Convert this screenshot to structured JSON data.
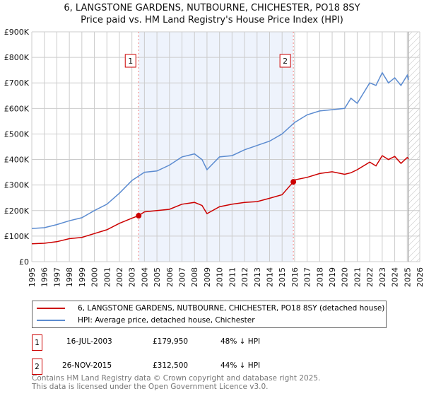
{
  "chart_data": {
    "type": "line",
    "title": "6, LANGSTONE GARDENS, NUTBOURNE, CHICHESTER, PO18 8SY",
    "subtitle": "Price paid vs. HM Land Registry's House Price Index (HPI)",
    "xlim": [
      1995,
      2026
    ],
    "ylim": [
      0,
      900000
    ],
    "y_ticks": [
      {
        "v": 0,
        "label": "£0"
      },
      {
        "v": 100000,
        "label": "£100K"
      },
      {
        "v": 200000,
        "label": "£200K"
      },
      {
        "v": 300000,
        "label": "£300K"
      },
      {
        "v": 400000,
        "label": "£400K"
      },
      {
        "v": 500000,
        "label": "£500K"
      },
      {
        "v": 600000,
        "label": "£600K"
      },
      {
        "v": 700000,
        "label": "£700K"
      },
      {
        "v": 800000,
        "label": "£800K"
      },
      {
        "v": 900000,
        "label": "£900K"
      }
    ],
    "x_ticks": [
      "1995",
      "1996",
      "1997",
      "1998",
      "1999",
      "2000",
      "2001",
      "2002",
      "2003",
      "2004",
      "2005",
      "2006",
      "2007",
      "2008",
      "2009",
      "2010",
      "2011",
      "2012",
      "2013",
      "2014",
      "2015",
      "2016",
      "2017",
      "2018",
      "2019",
      "2020",
      "2021",
      "2022",
      "2023",
      "2024",
      "2025",
      "2026"
    ],
    "grid": true,
    "series": [
      {
        "name": "6, LANGSTONE GARDENS, NUTBOURNE, CHICHESTER, PO18 8SY (detached house)",
        "color": "#cc0000",
        "x": [
          1995,
          1996,
          1997,
          1998,
          1999,
          2000,
          2001,
          2002,
          2003,
          2003.54,
          2004,
          2005,
          2006,
          2007,
          2008,
          2008.6,
          2009,
          2010,
          2011,
          2012,
          2013,
          2014,
          2015,
          2015.9,
          2016,
          2017,
          2018,
          2019,
          2020,
          2020.5,
          2021,
          2022,
          2022.5,
          2023,
          2023.5,
          2024,
          2024.5,
          2025,
          2025.1
        ],
        "y": [
          70000,
          72000,
          78000,
          90000,
          95000,
          110000,
          125000,
          150000,
          170000,
          179950,
          195000,
          200000,
          205000,
          225000,
          232000,
          220000,
          188000,
          215000,
          225000,
          232000,
          235000,
          248000,
          262000,
          312500,
          320000,
          330000,
          345000,
          352000,
          342000,
          348000,
          360000,
          390000,
          375000,
          415000,
          400000,
          412000,
          385000,
          408000,
          402000
        ]
      },
      {
        "name": "HPI: Average price, detached house, Chichester",
        "color": "#5b8bd0",
        "x": [
          1995,
          1996,
          1997,
          1998,
          1999,
          2000,
          2001,
          2002,
          2003,
          2004,
          2005,
          2006,
          2007,
          2008,
          2008.6,
          2009,
          2010,
          2011,
          2012,
          2013,
          2014,
          2015,
          2016,
          2017,
          2018,
          2019,
          2020,
          2020.5,
          2021,
          2022,
          2022.5,
          2023,
          2023.5,
          2024,
          2024.5,
          2025,
          2025.1
        ],
        "y": [
          130000,
          133000,
          145000,
          160000,
          172000,
          200000,
          225000,
          268000,
          318000,
          350000,
          355000,
          378000,
          410000,
          422000,
          400000,
          360000,
          410000,
          415000,
          438000,
          455000,
          472000,
          500000,
          545000,
          575000,
          590000,
          595000,
          600000,
          640000,
          620000,
          700000,
          690000,
          740000,
          700000,
          720000,
          690000,
          730000,
          712000
        ]
      }
    ],
    "annotations": [
      {
        "label": "1",
        "x": 2003.54,
        "y": 179950
      },
      {
        "label": "2",
        "x": 2015.9,
        "y": 312500
      }
    ],
    "forecast_hatch_from": 2025.1
  },
  "legend": {
    "property": "6, LANGSTONE GARDENS, NUTBOURNE, CHICHESTER, PO18 8SY (detached house)",
    "hpi": "HPI: Average price, detached house, Chichester"
  },
  "sales": [
    {
      "num": "1",
      "date": "16-JUL-2003",
      "price": "£179,950",
      "hpi": "48% ↓ HPI"
    },
    {
      "num": "2",
      "date": "26-NOV-2015",
      "price": "£312,500",
      "hpi": "44% ↓ HPI"
    }
  ],
  "footer": {
    "line1": "Contains HM Land Registry data © Crown copyright and database right 2025.",
    "line2": "This data is licensed under the Open Government Licence v3.0."
  }
}
